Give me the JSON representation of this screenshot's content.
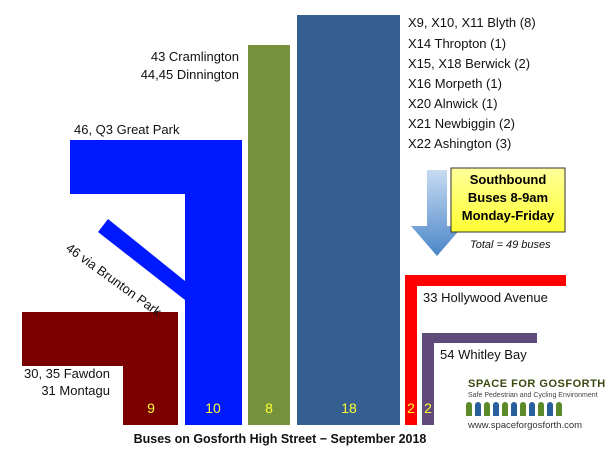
{
  "colors": {
    "fawdon": "#7b0000",
    "great_park": "#0019ff",
    "cramlington": "#76923c",
    "blyth": "#355e91",
    "hollywood": "#ff0000",
    "whitley": "#604a7b",
    "callout_fill": "#ffff66",
    "arrow": "#5b9bd5"
  },
  "labels": {
    "fawdon_1": "30, 35 Fawdon",
    "fawdon_2": "31 Montagu",
    "great_park": "46, Q3 Great Park",
    "brunton": "46 via Brunton Park",
    "cramlington_1": "43 Cramlington",
    "cramlington_2": "44,45 Dinnington",
    "routes": [
      "X9, X10, X11 Blyth (8)",
      "X14 Thropton (1)",
      "X15, X18 Berwick (2)",
      "X16 Morpeth (1)",
      "X20 Alnwick (1)",
      "X21 Newbiggin (2)",
      "X22 Ashington (3)"
    ],
    "hollywood": "33 Hollywood Avenue",
    "whitley": "54 Whitley Bay"
  },
  "counts": {
    "fawdon": "9",
    "great_park": "10",
    "cramlington": "8",
    "blyth": "18",
    "hollywood": "2",
    "whitley": "2"
  },
  "callout": {
    "line1": "Southbound",
    "line2": "Buses 8-9am",
    "line3": "Monday-Friday",
    "total": "Total = 49 buses"
  },
  "footer": "Buses on Gosforth High Street − September 2018",
  "logo": {
    "title": "SPACE FOR GOSFORTH",
    "subtitle": "Safe Pedestrian and Cycling Environment",
    "url": "www.spaceforgosforth.com"
  }
}
